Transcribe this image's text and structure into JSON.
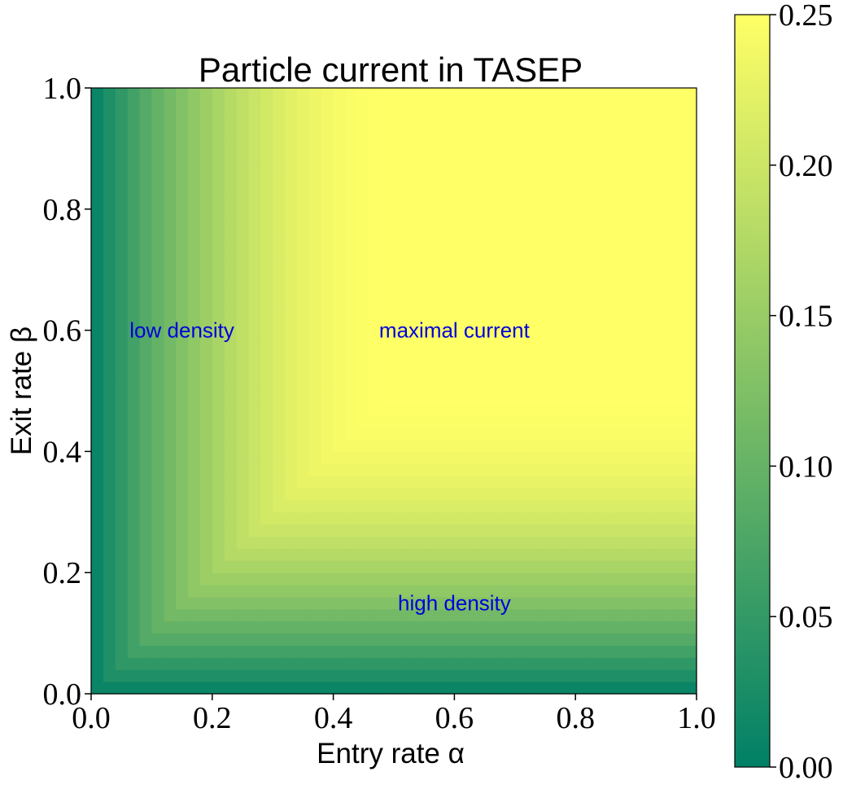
{
  "chart_data": {
    "type": "heatmap",
    "title": "Particle current in TASEP",
    "xlabel": "Entry rate α",
    "ylabel": "Exit rate β",
    "xlim": [
      0.0,
      1.0
    ],
    "ylim": [
      0.0,
      1.0
    ],
    "x_ticks": [
      "0.0",
      "0.2",
      "0.4",
      "0.6",
      "0.8",
      "1.0"
    ],
    "y_ticks": [
      "0.0",
      "0.2",
      "0.4",
      "0.6",
      "0.8",
      "1.0"
    ],
    "grid_resolution": 50,
    "value_formula": "J = α(1−α) if α < β and α < 0.5; β(1−β) if β < α and β < 0.5; 0.25 otherwise",
    "colorbar": {
      "range": [
        0.0,
        0.25
      ],
      "ticks": [
        "0.00",
        "0.05",
        "0.10",
        "0.15",
        "0.20",
        "0.25"
      ],
      "colormap": "summer",
      "color_low": "#008066",
      "color_high": "#ffff66"
    },
    "annotations": [
      {
        "text": "low density",
        "x": 0.15,
        "y": 0.6
      },
      {
        "text": "maximal current",
        "x": 0.6,
        "y": 0.6
      },
      {
        "text": "high density",
        "x": 0.6,
        "y": 0.15
      }
    ],
    "annotation_color": "#0000dd",
    "grid": false
  }
}
